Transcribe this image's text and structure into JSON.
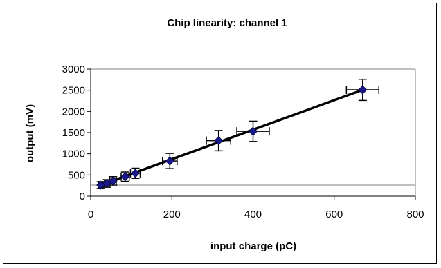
{
  "chart_data": {
    "type": "scatter",
    "title": "Chip linearity: channel 1",
    "xlabel": "input charge (pC)",
    "ylabel": "output (mV)",
    "xlim": [
      0,
      800
    ],
    "ylim": [
      0,
      3000
    ],
    "x_ticks": [
      "0",
      "200",
      "400",
      "600",
      "800"
    ],
    "y_ticks": [
      "0",
      "500",
      "1000",
      "1500",
      "2000",
      "2500",
      "3000"
    ],
    "grid": false,
    "legend": "none",
    "marker_color": "#1a1a8c",
    "line_color": "#000000",
    "points": [
      {
        "x": 25,
        "y": 260,
        "xerr": 5,
        "yerr": 80
      },
      {
        "x": 40,
        "y": 300,
        "xerr": 6,
        "yerr": 90
      },
      {
        "x": 55,
        "y": 360,
        "xerr": 8,
        "yerr": 100
      },
      {
        "x": 85,
        "y": 460,
        "xerr": 10,
        "yerr": 110
      },
      {
        "x": 110,
        "y": 540,
        "xerr": 12,
        "yerr": 120
      },
      {
        "x": 195,
        "y": 830,
        "xerr": 18,
        "yerr": 180
      },
      {
        "x": 315,
        "y": 1310,
        "xerr": 30,
        "yerr": 240
      },
      {
        "x": 400,
        "y": 1530,
        "xerr": 40,
        "yerr": 240
      },
      {
        "x": 670,
        "y": 2510,
        "xerr": 40,
        "yerr": 250
      }
    ],
    "fit_line": {
      "x": [
        20,
        670
      ],
      "y": [
        245,
        2510
      ]
    }
  }
}
